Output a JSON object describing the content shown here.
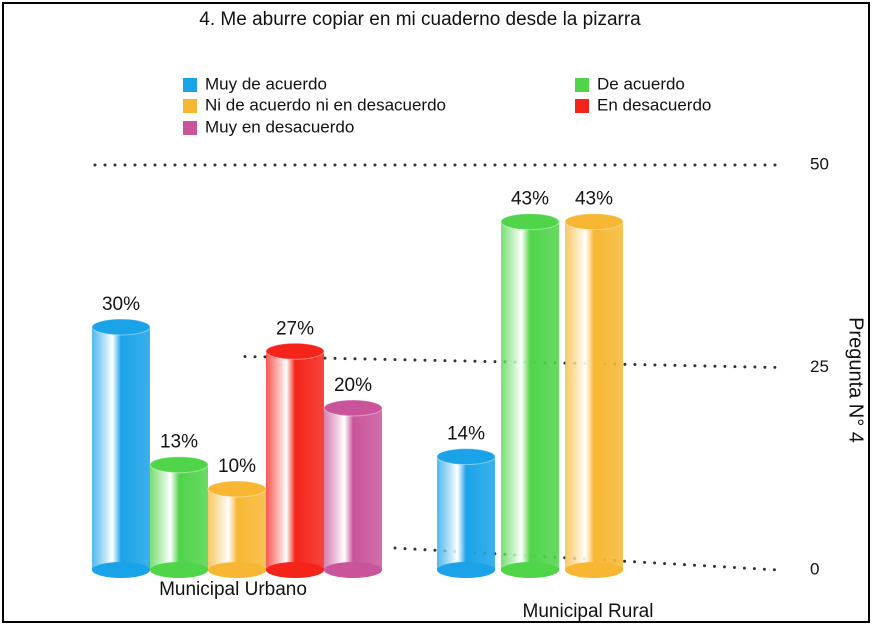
{
  "chart_data": {
    "type": "bar",
    "title": "4. Me aburre copiar en mi cuaderno desde la pizarra",
    "y_axis_label": "Pregunta N° 4",
    "categories": [
      "Municipal Urbano",
      "Municipal Rural"
    ],
    "series": [
      {
        "name": "Muy de acuerdo",
        "color": "#1aa3e8",
        "values": [
          30,
          14
        ],
        "value_labels": [
          "30%",
          "14%"
        ]
      },
      {
        "name": "De acuerdo",
        "color": "#4fd44a",
        "values": [
          13,
          43
        ],
        "value_labels": [
          "13%",
          "43%"
        ]
      },
      {
        "name": "Ni de acuerdo ni en desacuerdo",
        "color": "#f7b733",
        "values": [
          10,
          43
        ],
        "value_labels": [
          "10%",
          "43%"
        ]
      },
      {
        "name": "En desacuerdo",
        "color": "#f5241a",
        "values": [
          27,
          null
        ],
        "value_labels": [
          "27%",
          null
        ]
      },
      {
        "name": "Muy en desacuerdo",
        "color": "#c9549a",
        "values": [
          20,
          null
        ],
        "value_labels": [
          "20%",
          null
        ]
      }
    ],
    "ylim": [
      0,
      50
    ],
    "yticks": [
      0,
      25,
      50
    ],
    "grid": true
  }
}
